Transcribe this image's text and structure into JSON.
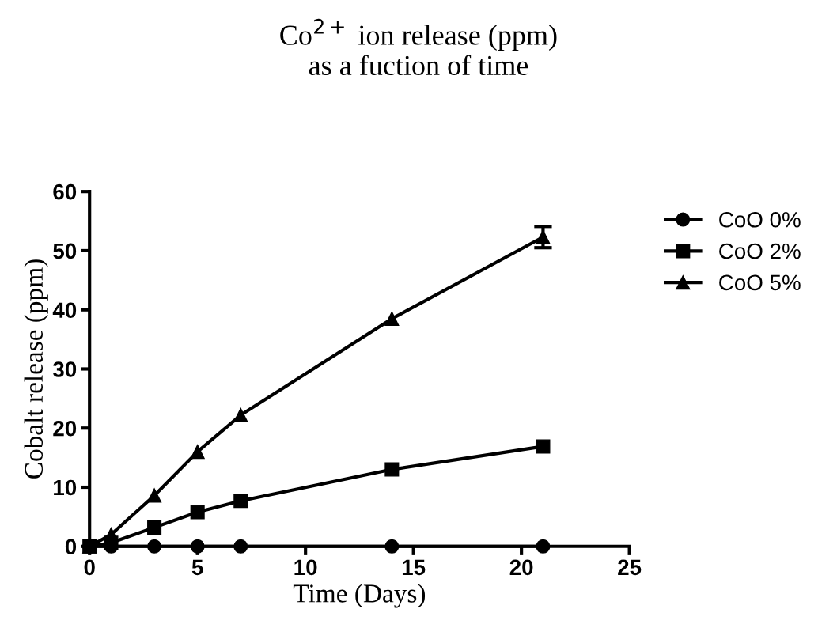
{
  "chart_data": {
    "type": "line",
    "title": "Co$^{2+}$ ion release (ppm)\nas a fuction of time",
    "xlabel": "Time (Days)",
    "ylabel": "Cobalt release (ppm)",
    "x": [
      0,
      1,
      3,
      5,
      7,
      14,
      21
    ],
    "series": [
      {
        "name": "CoO 0%",
        "color": "#000000",
        "marker": "circle",
        "values": [
          0,
          0,
          0,
          0,
          0,
          0,
          0
        ]
      },
      {
        "name": "CoO 2%",
        "color": "#000000",
        "marker": "square",
        "values": [
          0,
          0.6,
          3.2,
          5.8,
          7.7,
          13,
          16.9
        ]
      },
      {
        "name": "CoO 5%",
        "color": "#000000",
        "marker": "triangle",
        "values": [
          0,
          2,
          8.6,
          16,
          22.2,
          38.5,
          52.3
        ],
        "errors": [
          null,
          null,
          null,
          null,
          null,
          null,
          1.8
        ]
      }
    ],
    "xlim": [
      0,
      25
    ],
    "xticks": [
      0,
      5,
      10,
      15,
      20,
      25
    ],
    "ylim": [
      0,
      60
    ],
    "yticks": [
      0,
      10,
      20,
      30,
      40,
      50,
      60
    ],
    "grid": false,
    "legend": "top right",
    "line_style": "solid"
  }
}
